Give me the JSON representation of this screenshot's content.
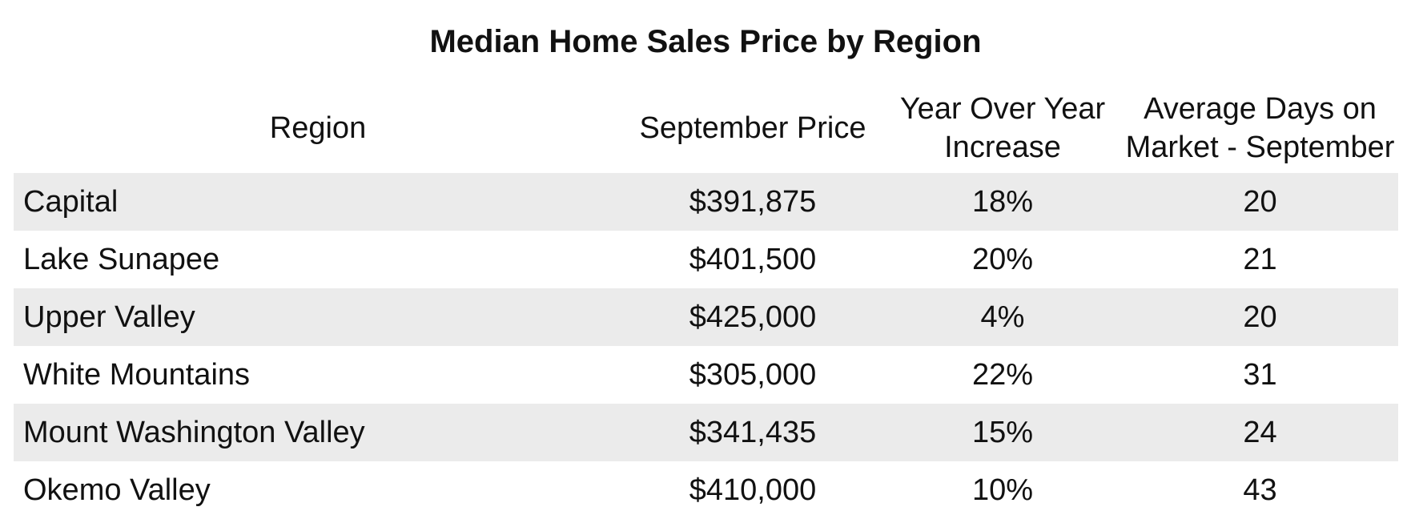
{
  "chart_data": {
    "type": "table",
    "title": "Median Home Sales Price by Region",
    "columns": [
      "Region",
      "September Price",
      "Year Over Year Increase",
      "Average Days on Market - September"
    ],
    "rows": [
      {
        "region": "Capital",
        "price": "$391,875",
        "yoy": "18%",
        "days": "20"
      },
      {
        "region": "Lake Sunapee",
        "price": "$401,500",
        "yoy": "20%",
        "days": "21"
      },
      {
        "region": "Upper Valley",
        "price": "$425,000",
        "yoy": "4%",
        "days": "20"
      },
      {
        "region": "White Mountains",
        "price": "$305,000",
        "yoy": "22%",
        "days": "31"
      },
      {
        "region": "Mount Washington Valley",
        "price": "$341,435",
        "yoy": "15%",
        "days": "24"
      },
      {
        "region": "Okemo Valley",
        "price": "$410,000",
        "yoy": "10%",
        "days": "43"
      }
    ]
  },
  "colors": {
    "stripe": "#ebebeb",
    "background": "#ffffff",
    "text": "#111111"
  }
}
